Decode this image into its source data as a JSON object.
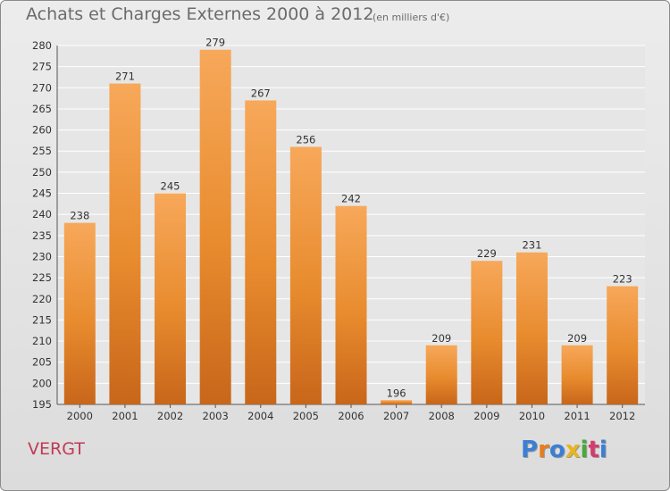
{
  "header": {
    "title": "Achats et Charges Externes 2000 à 2012",
    "subtitle": "(en milliers d'€)"
  },
  "commune": "VERGT",
  "logo": {
    "text": "Proxiti",
    "letter_colors": [
      "#3a7fd5",
      "#e87c1e",
      "#3a7fd5",
      "#e8b51e",
      "#4aa83c",
      "#d33c6e",
      "#3a7fd5"
    ]
  },
  "chart_data": {
    "type": "bar",
    "title": "Achats et Charges Externes 2000 à 2012",
    "subtitle": "(en milliers d'€)",
    "xlabel": "",
    "ylabel": "",
    "categories": [
      "2000",
      "2001",
      "2002",
      "2003",
      "2004",
      "2005",
      "2006",
      "2007",
      "2008",
      "2009",
      "2010",
      "2011",
      "2012"
    ],
    "values": [
      238,
      271,
      245,
      279,
      267,
      256,
      242,
      196,
      209,
      229,
      231,
      209,
      223
    ],
    "ylim": [
      195,
      280
    ],
    "yticks": [
      195,
      200,
      205,
      210,
      215,
      220,
      225,
      230,
      235,
      240,
      245,
      250,
      255,
      260,
      265,
      270,
      275,
      280
    ],
    "grid": true,
    "bar_color": "#e88b2e",
    "bar_color_light": "#f7a85a",
    "bar_color_dark": "#c8661a"
  }
}
